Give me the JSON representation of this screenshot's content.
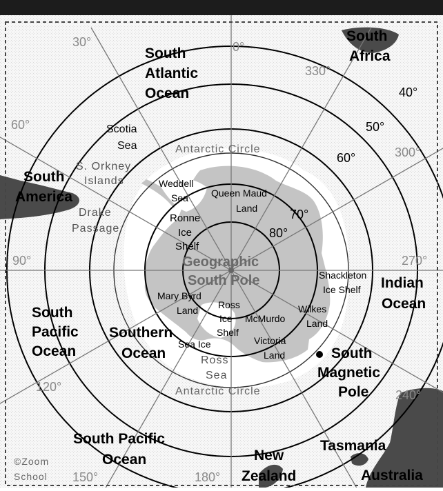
{
  "map": {
    "oceans": {
      "south_atlantic": [
        "South",
        "Atlantic",
        "Ocean"
      ],
      "indian": [
        "Indian",
        "Ocean"
      ],
      "south_pacific_left": [
        "South",
        "Pacific",
        "Ocean"
      ],
      "southern": [
        "Southern",
        "Ocean"
      ],
      "south_pacific_bottom": [
        "South Pacific",
        "Ocean"
      ]
    },
    "landmasses": {
      "south_africa": [
        "South",
        "Africa"
      ],
      "south_america": [
        "South",
        "America"
      ],
      "tasmania": "Tasmania",
      "new_zealand": [
        "New",
        "Zealand"
      ],
      "australia": "Australia"
    },
    "regions": {
      "scotia_sea": [
        "Scotia",
        "Sea"
      ],
      "s_orkney": [
        "S. Orkney",
        "Islands"
      ],
      "drake_passage": [
        "Drake",
        "Passage"
      ],
      "weddell_sea": [
        "Weddell",
        "Sea"
      ],
      "queen_maud": [
        "Queen Maud",
        "Land"
      ],
      "ronne": [
        "Ronne",
        "Ice",
        "Shelf"
      ],
      "shackleton": [
        "Shackleton",
        "Ice Shelf"
      ],
      "marie_byrd": [
        "Mary Byrd",
        "Land"
      ],
      "ross_ice_shelf": [
        "Ross",
        "Ice",
        "Shelf"
      ],
      "mcmurdo": "McMurdo",
      "wilkes": [
        "Wilkes",
        "Land"
      ],
      "victoria": [
        "Victoria",
        "Land"
      ],
      "sea_ice": "Sea Ice",
      "ross_sea": [
        "Ross",
        "Sea"
      ]
    },
    "geographic_pole": [
      "Geographic",
      "South Pole"
    ],
    "magnetic_pole": [
      "South",
      "Magnetic",
      "Pole"
    ],
    "antarctic_circle": "Antarctic Circle",
    "longitudes": {
      "l0": "0°",
      "l30": "30°",
      "l60": "60°",
      "l90": "90°",
      "l120": "120°",
      "l150": "150°",
      "l180": "180°",
      "l240": "240°",
      "l270": "270°",
      "l300": "300°",
      "l330": "330°"
    },
    "latitudes": {
      "l40": "40°",
      "l50": "50°",
      "l60": "60°",
      "l70": "70°",
      "l80": "80°"
    },
    "credit": [
      "©Zoom",
      "School"
    ]
  }
}
